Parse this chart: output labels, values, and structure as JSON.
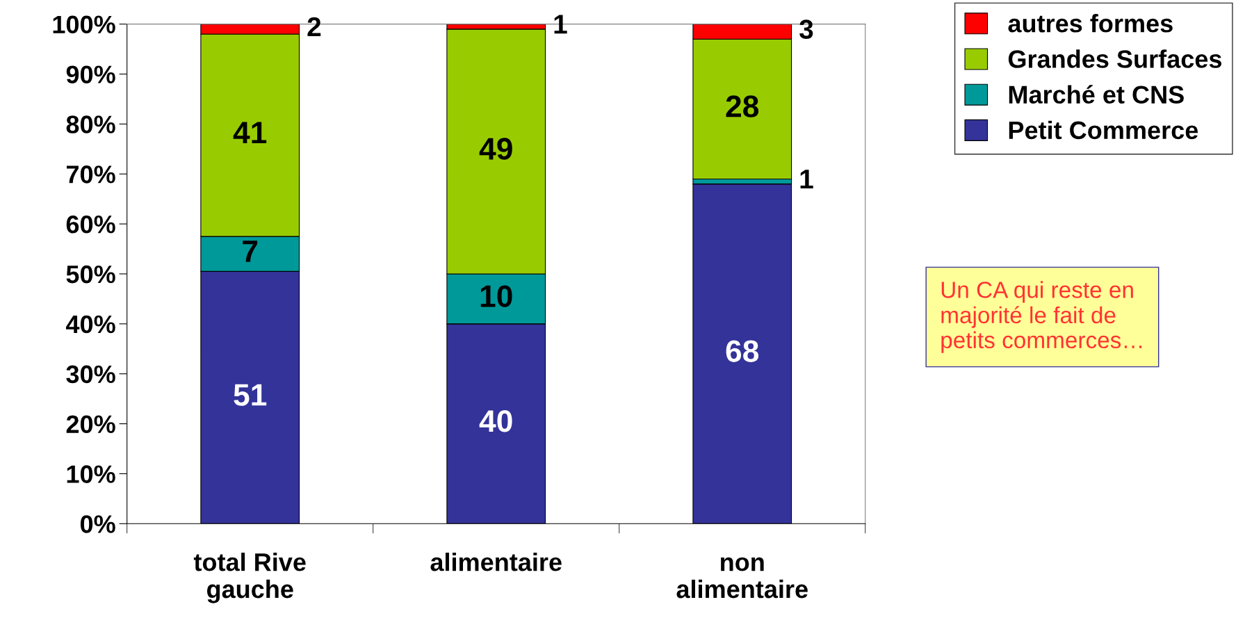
{
  "chart_data": {
    "type": "bar",
    "stacked": true,
    "categories": [
      "total Rive\ngauche",
      "alimentaire",
      "non\nalimentaire"
    ],
    "series": [
      {
        "name": "Petit Commerce",
        "color": "#333399",
        "values": [
          50.5,
          40,
          68
        ],
        "value_labels": [
          "51",
          "40",
          "68"
        ]
      },
      {
        "name": "Marché et CNS",
        "color": "#009999",
        "values": [
          7,
          10,
          1
        ],
        "value_labels": [
          "7",
          "10",
          "1"
        ]
      },
      {
        "name": "Grandes Surfaces",
        "color": "#99cc00",
        "values": [
          40.5,
          49,
          28
        ],
        "value_labels": [
          "41",
          "49",
          "28"
        ]
      },
      {
        "name": "autres formes",
        "color": "#ff0000",
        "values": [
          2,
          1,
          3
        ],
        "value_labels": [
          "2",
          "1",
          "3"
        ]
      }
    ],
    "ylim": [
      0,
      100
    ],
    "yticks": [
      {
        "value": 0,
        "label": "0%"
      },
      {
        "value": 10,
        "label": "10%"
      },
      {
        "value": 20,
        "label": "20%"
      },
      {
        "value": 30,
        "label": "30%"
      },
      {
        "value": 40,
        "label": "40%"
      },
      {
        "value": 50,
        "label": "50%"
      },
      {
        "value": 60,
        "label": "60%"
      },
      {
        "value": 70,
        "label": "70%"
      },
      {
        "value": 80,
        "label": "80%"
      },
      {
        "value": 90,
        "label": "90%"
      },
      {
        "value": 100,
        "label": "100%"
      }
    ],
    "legend": "top right",
    "grid": false,
    "annotations": [
      "Un CA qui reste en\nmajorité le fait de\npetits commerces…"
    ]
  }
}
